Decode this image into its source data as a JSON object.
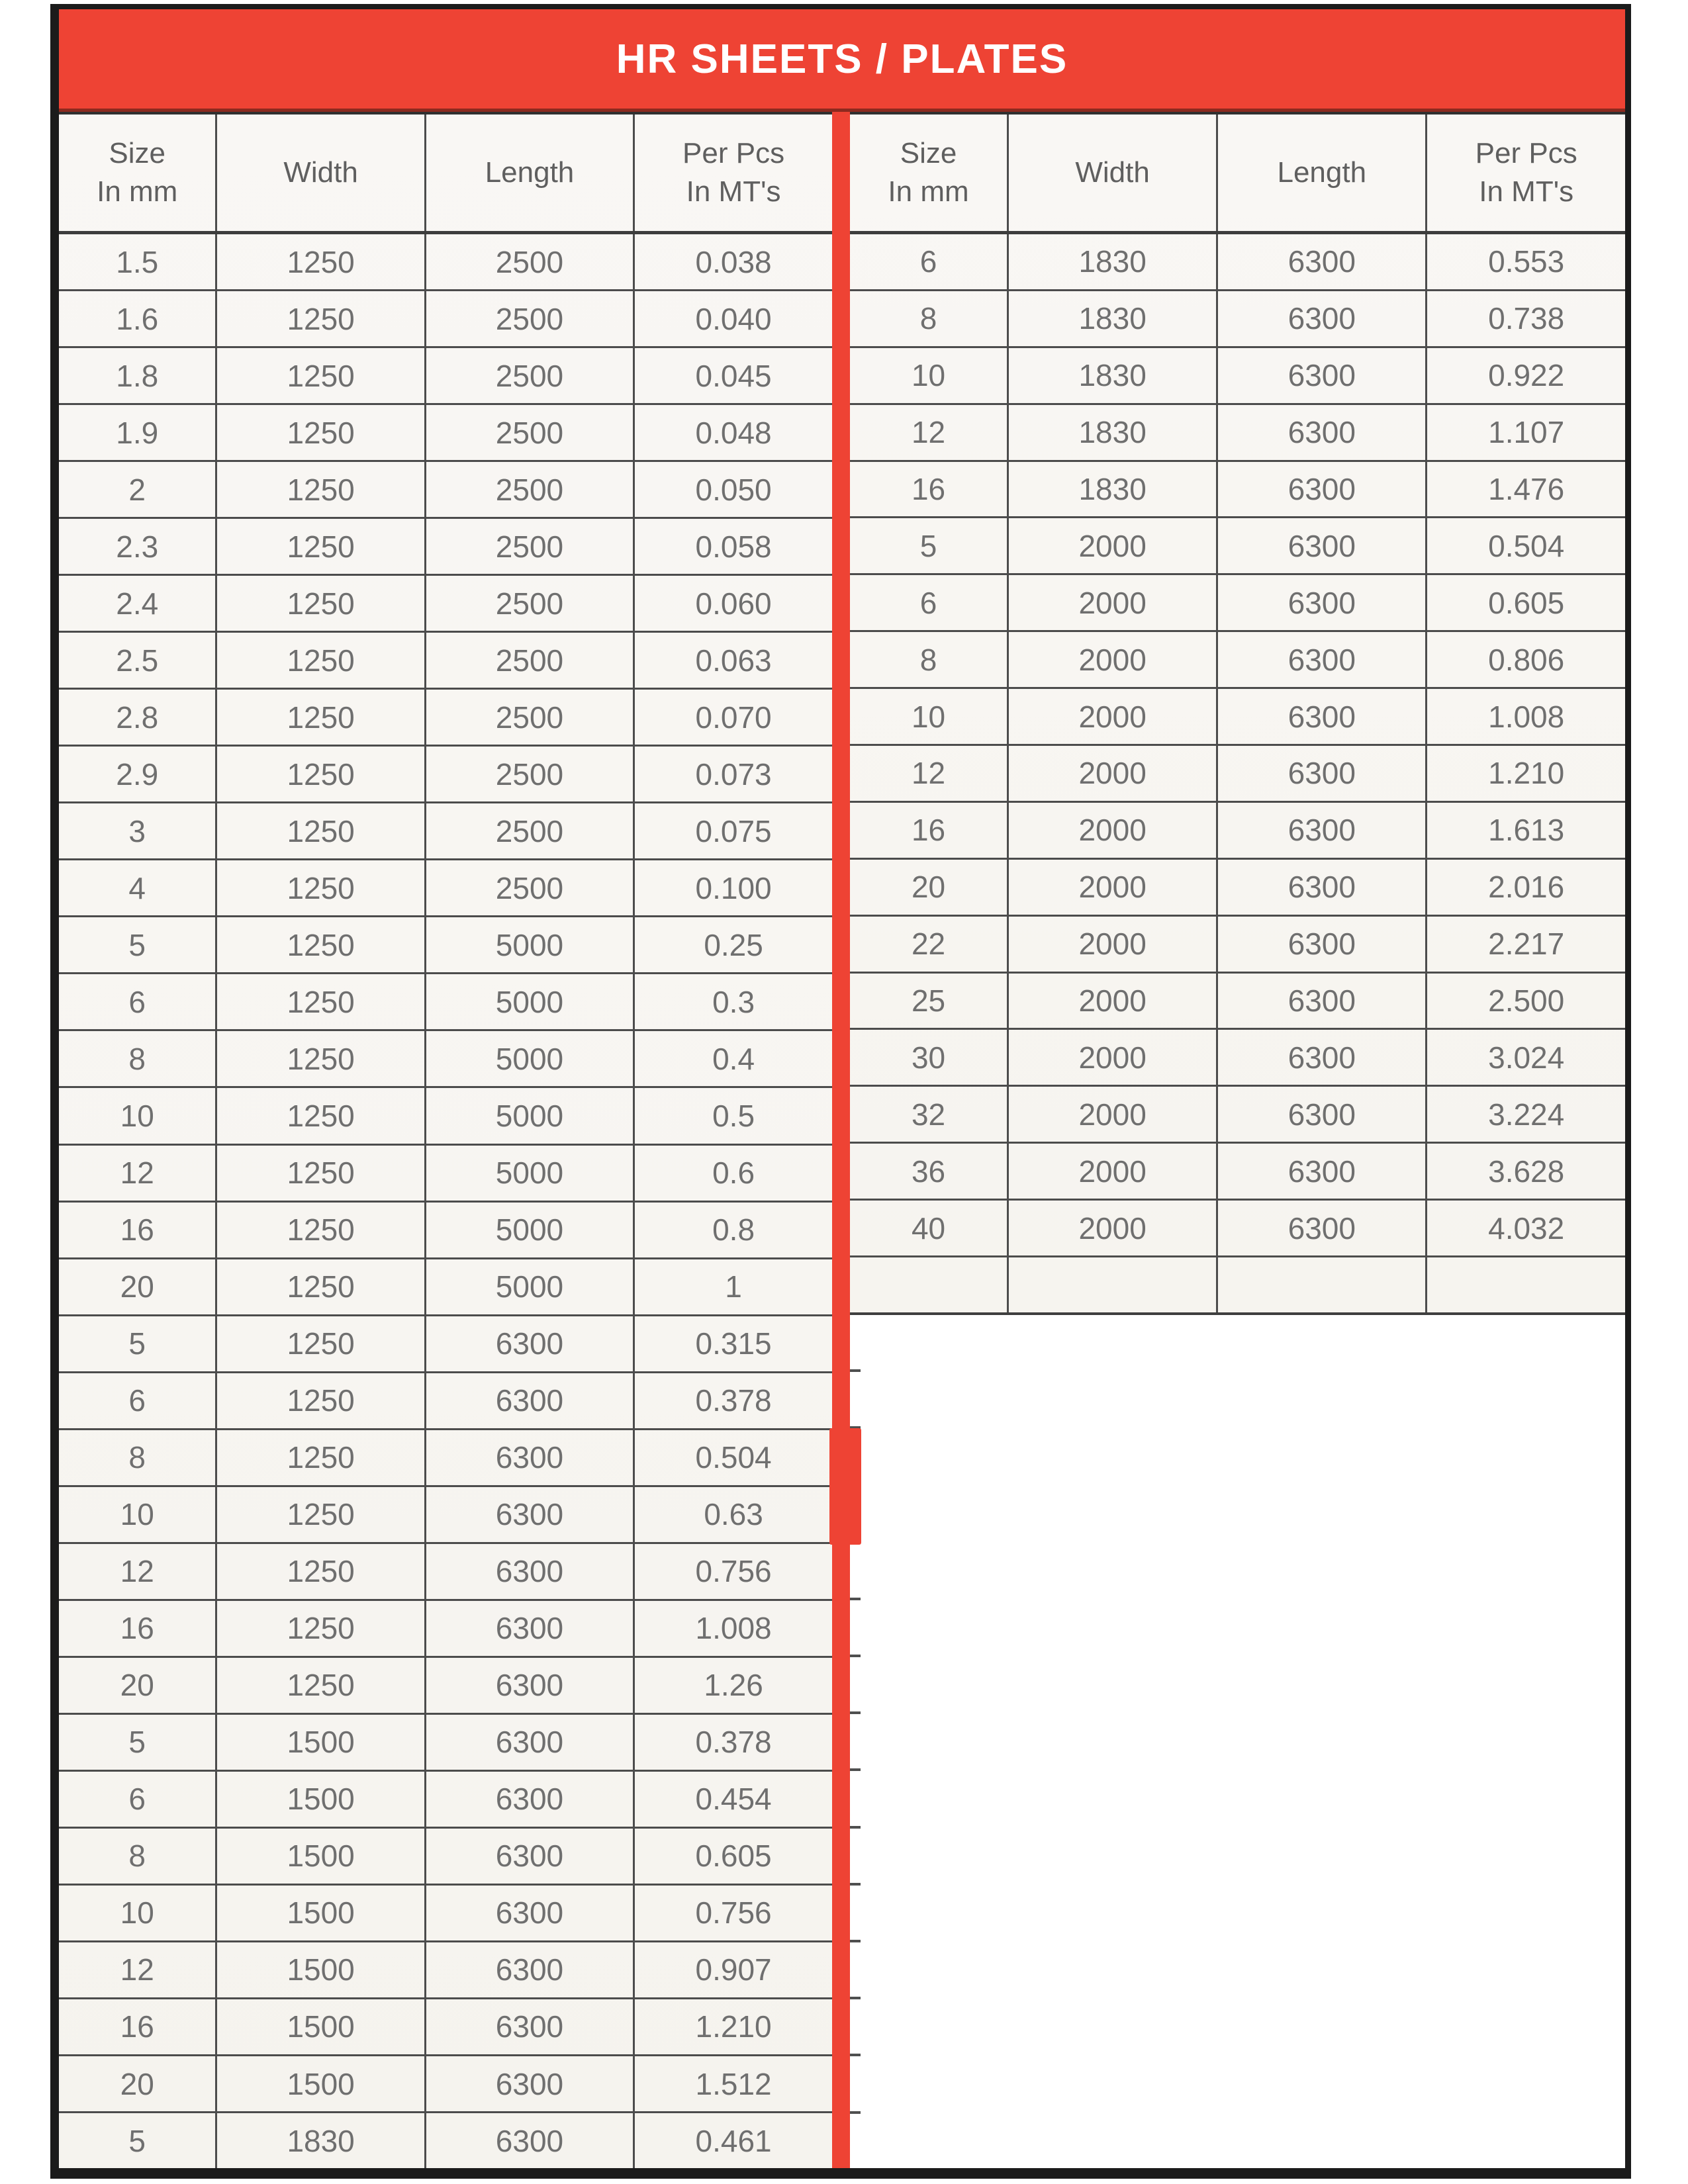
{
  "title": "HR SHEETS / PLATES",
  "accent_color": "#ee4334",
  "frame_color": "#1b1b1b",
  "left_table": {
    "headers": [
      [
        "Size",
        "In mm"
      ],
      [
        "Width"
      ],
      [
        "Length"
      ],
      [
        "Per Pcs",
        "In MT's"
      ]
    ],
    "rows": [
      [
        "1.5",
        "1250",
        "2500",
        "0.038"
      ],
      [
        "1.6",
        "1250",
        "2500",
        "0.040"
      ],
      [
        "1.8",
        "1250",
        "2500",
        "0.045"
      ],
      [
        "1.9",
        "1250",
        "2500",
        "0.048"
      ],
      [
        "2",
        "1250",
        "2500",
        "0.050"
      ],
      [
        "2.3",
        "1250",
        "2500",
        "0.058"
      ],
      [
        "2.4",
        "1250",
        "2500",
        "0.060"
      ],
      [
        "2.5",
        "1250",
        "2500",
        "0.063"
      ],
      [
        "2.8",
        "1250",
        "2500",
        "0.070"
      ],
      [
        "2.9",
        "1250",
        "2500",
        "0.073"
      ],
      [
        "3",
        "1250",
        "2500",
        "0.075"
      ],
      [
        "4",
        "1250",
        "2500",
        "0.100"
      ],
      [
        "5",
        "1250",
        "5000",
        "0.25"
      ],
      [
        "6",
        "1250",
        "5000",
        "0.3"
      ],
      [
        "8",
        "1250",
        "5000",
        "0.4"
      ],
      [
        "10",
        "1250",
        "5000",
        "0.5"
      ],
      [
        "12",
        "1250",
        "5000",
        "0.6"
      ],
      [
        "16",
        "1250",
        "5000",
        "0.8"
      ],
      [
        "20",
        "1250",
        "5000",
        "1"
      ],
      [
        "5",
        "1250",
        "6300",
        "0.315"
      ],
      [
        "6",
        "1250",
        "6300",
        "0.378"
      ],
      [
        "8",
        "1250",
        "6300",
        "0.504"
      ],
      [
        "10",
        "1250",
        "6300",
        "0.63"
      ],
      [
        "12",
        "1250",
        "6300",
        "0.756"
      ],
      [
        "16",
        "1250",
        "6300",
        "1.008"
      ],
      [
        "20",
        "1250",
        "6300",
        "1.26"
      ],
      [
        "5",
        "1500",
        "6300",
        "0.378"
      ],
      [
        "6",
        "1500",
        "6300",
        "0.454"
      ],
      [
        "8",
        "1500",
        "6300",
        "0.605"
      ],
      [
        "10",
        "1500",
        "6300",
        "0.756"
      ],
      [
        "12",
        "1500",
        "6300",
        "0.907"
      ],
      [
        "16",
        "1500",
        "6300",
        "1.210"
      ],
      [
        "20",
        "1500",
        "6300",
        "1.512"
      ],
      [
        "5",
        "1830",
        "6300",
        "0.461"
      ]
    ]
  },
  "right_table": {
    "headers": [
      [
        "Size",
        "In mm"
      ],
      [
        "Width"
      ],
      [
        "Length"
      ],
      [
        "Per Pcs",
        "In MT's"
      ]
    ],
    "rows": [
      [
        "6",
        "1830",
        "6300",
        "0.553"
      ],
      [
        "8",
        "1830",
        "6300",
        "0.738"
      ],
      [
        "10",
        "1830",
        "6300",
        "0.922"
      ],
      [
        "12",
        "1830",
        "6300",
        "1.107"
      ],
      [
        "16",
        "1830",
        "6300",
        "1.476"
      ],
      [
        "5",
        "2000",
        "6300",
        "0.504"
      ],
      [
        "6",
        "2000",
        "6300",
        "0.605"
      ],
      [
        "8",
        "2000",
        "6300",
        "0.806"
      ],
      [
        "10",
        "2000",
        "6300",
        "1.008"
      ],
      [
        "12",
        "2000",
        "6300",
        "1.210"
      ],
      [
        "16",
        "2000",
        "6300",
        "1.613"
      ],
      [
        "20",
        "2000",
        "6300",
        "2.016"
      ],
      [
        "22",
        "2000",
        "6300",
        "2.217"
      ],
      [
        "25",
        "2000",
        "6300",
        "2.500"
      ],
      [
        "30",
        "2000",
        "6300",
        "3.024"
      ],
      [
        "32",
        "2000",
        "6300",
        "3.224"
      ],
      [
        "36",
        "2000",
        "6300",
        "3.628"
      ],
      [
        "40",
        "2000",
        "6300",
        "4.032"
      ],
      [
        "",
        "",
        "",
        ""
      ]
    ]
  }
}
